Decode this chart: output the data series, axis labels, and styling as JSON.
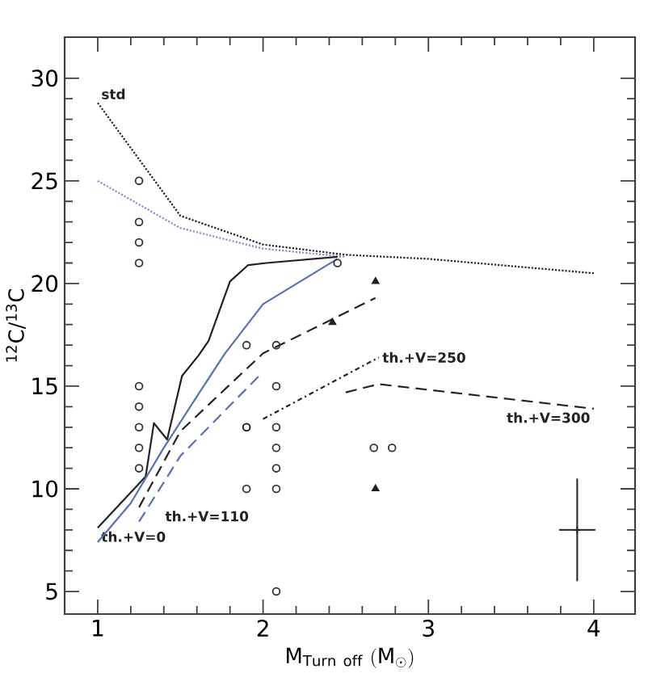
{
  "chart_data": {
    "type": "line",
    "xlabel": "\\mathrm{M}_{\\mathrm{Turn\\ off}}\\ (\\mathrm{M}_{\\odot})",
    "ylabel": "$^{12}$C/$^{13}$C",
    "xlim": [
      0.8,
      4.25
    ],
    "ylim": [
      3.9,
      32
    ],
    "xticks": [
      1,
      2,
      3,
      4
    ],
    "yticks": [
      5,
      10,
      15,
      20,
      25,
      30
    ],
    "series": [
      {
        "name": "std",
        "line_style": "dotted",
        "color": "#222222",
        "x": [
          1.0,
          1.5,
          2.0,
          2.5,
          3.0,
          4.0
        ],
        "values": [
          28.8,
          23.3,
          21.9,
          21.4,
          21.2,
          20.5
        ]
      },
      {
        "line_style": "dotted",
        "color": "#7f8fc8",
        "x": [
          1.0,
          1.5,
          2.0,
          2.5
        ],
        "values": [
          25.0,
          22.7,
          21.7,
          21.3
        ]
      },
      {
        "name": "th.+V=0",
        "line_style": "solid",
        "color": "#222222",
        "x": [
          1.0,
          1.29,
          1.34,
          1.42,
          1.51,
          1.61,
          1.67,
          1.8,
          1.91,
          2.02,
          2.45
        ],
        "values": [
          8.1,
          10.6,
          13.2,
          12.4,
          15.5,
          16.5,
          17.2,
          20.1,
          20.9,
          21.0,
          21.3
        ]
      },
      {
        "line_style": "solid",
        "color": "#5a6fb5",
        "x": [
          1.0,
          1.2,
          1.4,
          1.6,
          1.77,
          2.0,
          2.45
        ],
        "values": [
          7.4,
          9.3,
          12.0,
          14.5,
          16.6,
          19.0,
          21.2
        ]
      },
      {
        "name": "th.+V=110",
        "line_style": "dashed",
        "color": "#222222",
        "x": [
          1.25,
          1.5,
          2.0,
          2.68
        ],
        "values": [
          9.1,
          12.8,
          16.6,
          19.3
        ]
      },
      {
        "line_style": "dashed",
        "color": "#5a6fb5",
        "x": [
          1.25,
          1.5,
          2.0
        ],
        "values": [
          8.4,
          11.6,
          15.7
        ]
      },
      {
        "name": "th.+V=250",
        "line_style": "dashdot",
        "color": "#222222",
        "x": [
          2.0,
          2.7
        ],
        "values": [
          13.4,
          16.4
        ]
      },
      {
        "name": "th.+V=300",
        "line_style": "dashed",
        "color": "#222222",
        "x": [
          2.5,
          2.7,
          4.0
        ],
        "values": [
          14.7,
          15.1,
          13.9
        ]
      },
      {
        "type": "scatter",
        "marker": "circle",
        "color": "#333333",
        "x": [
          1.25,
          1.25,
          1.25,
          1.25,
          1.25,
          1.25,
          1.25,
          1.25,
          1.25,
          1.9,
          1.9,
          2.08,
          2.08,
          2.08,
          2.08,
          2.08,
          2.08,
          2.08,
          2.45,
          2.67,
          2.78
        ],
        "values": [
          25,
          23,
          22,
          21,
          15,
          14,
          13,
          12,
          11,
          17,
          10,
          17,
          15,
          13,
          12,
          11,
          10,
          5,
          21,
          12,
          12
        ]
      },
      {
        "type": "scatter",
        "marker": "circle",
        "color": "#111111",
        "x": [
          1.9
        ],
        "values": [
          13
        ]
      },
      {
        "type": "scatter",
        "marker": "triangle",
        "color": "#222222",
        "x": [
          2.42,
          2.68,
          2.68
        ],
        "values": [
          18.1,
          20.1,
          10.0
        ]
      },
      {
        "type": "scatter",
        "marker": "cross",
        "color": "#222222",
        "x": [
          3.9
        ],
        "values": [
          8.0
        ],
        "errors": [
          2.5
        ],
        "xerrors": [
          0.11
        ]
      }
    ]
  }
}
